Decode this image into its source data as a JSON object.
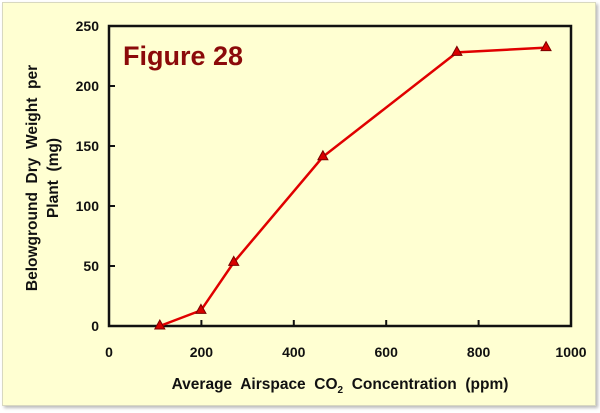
{
  "chart_data": {
    "type": "line",
    "title": "Figure 28",
    "xlabel": "Average  Airspace  CO",
    "xlabel_subscript": "2",
    "xlabel_suffix": "  Concentration  (ppm)",
    "ylabel_line1": "Belowground  Dry  Weight  per",
    "ylabel_line2": "Plant  (mg)",
    "xlim": [
      0,
      1000
    ],
    "ylim": [
      0,
      250
    ],
    "xticks": [
      0,
      200,
      400,
      600,
      800,
      1000
    ],
    "yticks": [
      0,
      50,
      100,
      150,
      200,
      250
    ],
    "grid": false,
    "series": [
      {
        "name": "Belowground dry weight",
        "color": "#E00000",
        "marker": "triangle",
        "x": [
          110,
          199,
          270,
          463,
          753,
          946
        ],
        "y": [
          0,
          13,
          53,
          141,
          228,
          232
        ]
      }
    ],
    "title_color": "#8B0A0A",
    "background": "#FFFFD2"
  }
}
